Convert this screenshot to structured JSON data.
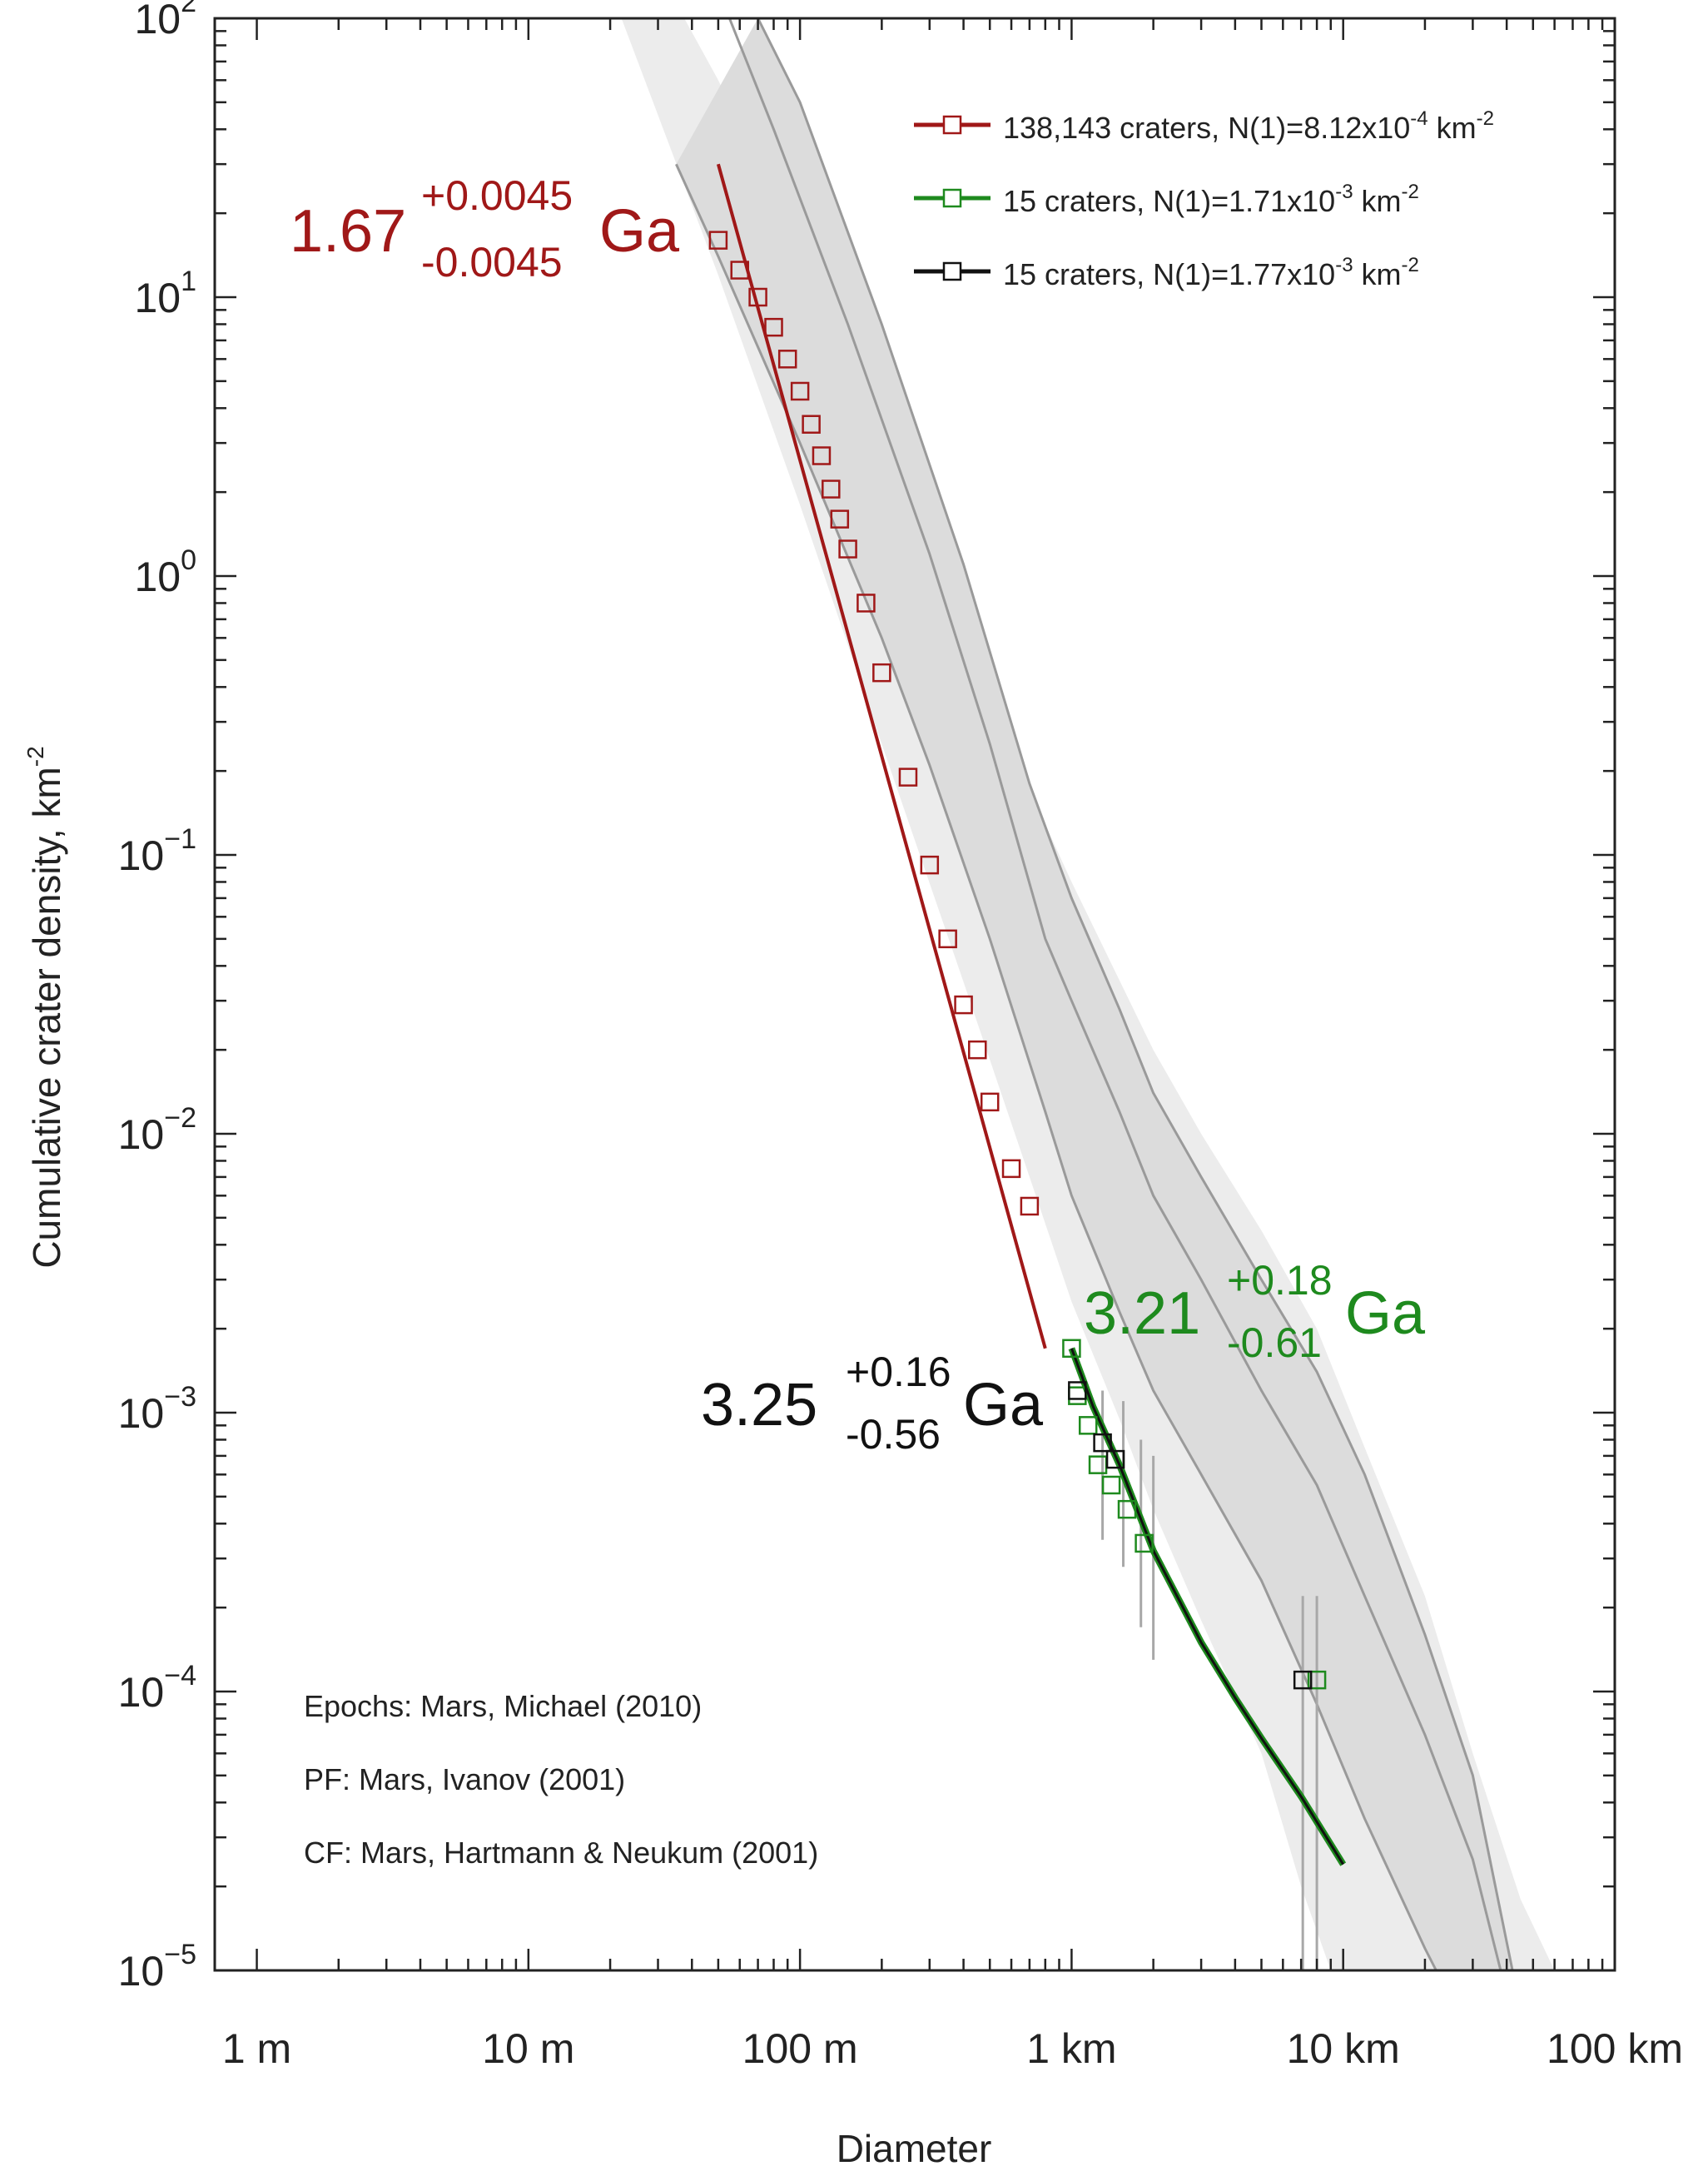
{
  "chart_data": {
    "type": "scatter",
    "xscale": "log",
    "yscale": "log",
    "xlabel": "Diameter",
    "ylabel": "Cumulative crater density, km",
    "ylabel_exp": "-2",
    "xlim_km": [
      0.0007,
      100
    ],
    "ylim": [
      1e-05,
      100
    ],
    "x_ticks": [
      {
        "value": 0.001,
        "label": "1 m"
      },
      {
        "value": 0.01,
        "label": "10 m"
      },
      {
        "value": 0.1,
        "label": "100 m"
      },
      {
        "value": 1,
        "label": "1 km"
      },
      {
        "value": 10,
        "label": "10 km"
      },
      {
        "value": 100,
        "label": "100 km"
      }
    ],
    "y_ticks": [
      {
        "value": 100,
        "base": "10",
        "exp": "2"
      },
      {
        "value": 10,
        "base": "10",
        "exp": "1"
      },
      {
        "value": 1,
        "base": "10",
        "exp": "0"
      },
      {
        "value": 0.1,
        "base": "10",
        "exp": "−1"
      },
      {
        "value": 0.01,
        "base": "10",
        "exp": "−2"
      },
      {
        "value": 0.001,
        "base": "10",
        "exp": "−3"
      },
      {
        "value": 0.0001,
        "base": "10",
        "exp": "−4"
      },
      {
        "value": 1e-05,
        "base": "10",
        "exp": "−5"
      }
    ],
    "series": [
      {
        "name": "138,143 craters, N(1)=8.12x10-4 km-2",
        "legend_count": "138,143",
        "legend_prefix": " craters, N(1)=8.12x10",
        "legend_exp1": "-4",
        "legend_unit": " km",
        "legend_exp2": "-2",
        "color": "#a01818",
        "points": [
          [
            0.05,
            16
          ],
          [
            0.06,
            12.5
          ],
          [
            0.07,
            10
          ],
          [
            0.08,
            7.8
          ],
          [
            0.09,
            6
          ],
          [
            0.1,
            4.6
          ],
          [
            0.11,
            3.5
          ],
          [
            0.12,
            2.7
          ],
          [
            0.13,
            2.05
          ],
          [
            0.14,
            1.6
          ],
          [
            0.15,
            1.25
          ],
          [
            0.175,
            0.8
          ],
          [
            0.2,
            0.45
          ],
          [
            0.25,
            0.19
          ],
          [
            0.3,
            0.092
          ],
          [
            0.35,
            0.05
          ],
          [
            0.4,
            0.029
          ],
          [
            0.45,
            0.02
          ],
          [
            0.5,
            0.013
          ],
          [
            0.6,
            0.0075
          ],
          [
            0.7,
            0.0055
          ]
        ],
        "fit": [
          [
            0.05,
            30
          ],
          [
            0.8,
            0.0017
          ]
        ],
        "age_label": {
          "value": "1.67",
          "plus": "+0.0045",
          "minus": "-0.0045",
          "unit": "Ga"
        }
      },
      {
        "name": "15 craters, N(1)=1.71x10-3 km-2",
        "legend_count": "15",
        "legend_prefix": " craters, N(1)=1.71x10",
        "legend_exp1": "-3",
        "legend_unit": " km",
        "legend_exp2": "-2",
        "color": "#1e8a1e",
        "points": [
          [
            1.0,
            0.0017
          ],
          [
            1.05,
            0.00115
          ],
          [
            1.15,
            0.0009
          ],
          [
            1.25,
            0.00065
          ],
          [
            1.4,
            0.00055
          ],
          [
            1.6,
            0.00045
          ],
          [
            1.85,
            0.00034
          ],
          [
            8.0,
            0.00011
          ]
        ],
        "age_label": {
          "value": "3.21",
          "plus": "+0.18",
          "minus": "-0.61",
          "unit": "Ga"
        }
      },
      {
        "name": "15 craters, N(1)=1.77x10-3 km-2",
        "legend_count": "15",
        "legend_prefix": " craters, N(1)=1.77x10",
        "legend_exp1": "-3",
        "legend_unit": " km",
        "legend_exp2": "-2",
        "color": "#111111",
        "points": [
          [
            1.05,
            0.0012
          ],
          [
            1.3,
            0.00078
          ],
          [
            1.45,
            0.00068
          ],
          [
            7.1,
            0.00011
          ]
        ],
        "age_label": {
          "value": "3.25",
          "plus": "+0.16",
          "minus": "-0.56",
          "unit": "Ga"
        }
      }
    ],
    "fit_curve_km": [
      [
        1.0,
        0.0017
      ],
      [
        1.2,
        0.00105
      ],
      [
        1.5,
        0.00065
      ],
      [
        2,
        0.00032
      ],
      [
        3,
        0.00015
      ],
      [
        4,
        9.5e-05
      ],
      [
        5,
        6.8e-05
      ],
      [
        7,
        4.2e-05
      ],
      [
        10,
        2.4e-05
      ]
    ],
    "isochron_curves": [
      [
        [
          0.035,
          30
        ],
        [
          0.05,
          14
        ],
        [
          0.1,
          3
        ],
        [
          0.2,
          0.6
        ],
        [
          0.3,
          0.21
        ],
        [
          0.5,
          0.05
        ],
        [
          0.8,
          0.012
        ],
        [
          1,
          0.006
        ],
        [
          1.5,
          0.0023
        ],
        [
          2,
          0.0012
        ],
        [
          3,
          0.0006
        ],
        [
          5,
          0.00025
        ],
        [
          8,
          9e-05
        ],
        [
          12,
          3.5e-05
        ],
        [
          20,
          1.2e-05
        ],
        [
          22,
          1e-05
        ]
      ],
      [
        [
          0.055,
          100
        ],
        [
          0.08,
          40
        ],
        [
          0.15,
          8
        ],
        [
          0.3,
          1.2
        ],
        [
          0.5,
          0.25
        ],
        [
          0.8,
          0.05
        ],
        [
          1,
          0.03
        ],
        [
          1.5,
          0.012
        ],
        [
          2,
          0.006
        ],
        [
          3,
          0.003
        ],
        [
          5,
          0.0012
        ],
        [
          8,
          0.00055
        ],
        [
          12,
          0.00022
        ],
        [
          20,
          7e-05
        ],
        [
          30,
          2.5e-05
        ],
        [
          38,
          1e-05
        ]
      ],
      [
        [
          0.07,
          100
        ],
        [
          0.1,
          50
        ],
        [
          0.2,
          8
        ],
        [
          0.4,
          1.1
        ],
        [
          0.7,
          0.18
        ],
        [
          1,
          0.07
        ],
        [
          1.5,
          0.028
        ],
        [
          2,
          0.014
        ],
        [
          3,
          0.007
        ],
        [
          5,
          0.003
        ],
        [
          8,
          0.0014
        ],
        [
          12,
          0.0006
        ],
        [
          20,
          0.00016
        ],
        [
          30,
          5e-05
        ],
        [
          42,
          1e-05
        ]
      ]
    ],
    "band_outer": {
      "upper": [
        [
          0.0375,
          100
        ],
        [
          0.05,
          60
        ],
        [
          0.1,
          14
        ],
        [
          0.2,
          3.2
        ],
        [
          0.5,
          0.35
        ],
        [
          1,
          0.08
        ],
        [
          2,
          0.02
        ],
        [
          3,
          0.01
        ],
        [
          5,
          0.0045
        ],
        [
          8,
          0.002
        ],
        [
          12,
          0.00075
        ],
        [
          20,
          0.00022
        ],
        [
          30,
          6e-05
        ],
        [
          45,
          1.8e-05
        ],
        [
          60,
          1e-05
        ]
      ],
      "lower": [
        [
          0.022,
          100
        ],
        [
          0.03,
          45
        ],
        [
          0.05,
          12
        ],
        [
          0.1,
          1.8
        ],
        [
          0.2,
          0.25
        ],
        [
          0.4,
          0.035
        ],
        [
          0.7,
          0.007
        ],
        [
          1,
          0.0025
        ],
        [
          1.5,
          0.00095
        ],
        [
          2,
          0.00045
        ],
        [
          3,
          0.00018
        ],
        [
          5,
          6e-05
        ],
        [
          7,
          2e-05
        ],
        [
          9,
          1e-05
        ]
      ]
    },
    "band_inner": {
      "upper": [
        [
          0.07,
          100
        ],
        [
          0.1,
          50
        ],
        [
          0.2,
          8
        ],
        [
          0.4,
          1.1
        ],
        [
          0.7,
          0.18
        ],
        [
          1,
          0.07
        ],
        [
          1.5,
          0.028
        ],
        [
          2,
          0.014
        ],
        [
          3,
          0.007
        ],
        [
          5,
          0.003
        ],
        [
          8,
          0.0014
        ],
        [
          12,
          0.0006
        ],
        [
          20,
          0.00016
        ],
        [
          30,
          5e-05
        ],
        [
          42,
          1e-05
        ]
      ],
      "lower": [
        [
          0.035,
          30
        ],
        [
          0.05,
          14
        ],
        [
          0.1,
          3
        ],
        [
          0.2,
          0.6
        ],
        [
          0.3,
          0.21
        ],
        [
          0.5,
          0.05
        ],
        [
          0.8,
          0.012
        ],
        [
          1,
          0.006
        ],
        [
          1.5,
          0.0023
        ],
        [
          2,
          0.0012
        ],
        [
          3,
          0.0006
        ],
        [
          5,
          0.00025
        ],
        [
          8,
          9e-05
        ],
        [
          12,
          3.5e-05
        ],
        [
          20,
          1.2e-05
        ],
        [
          22,
          1e-05
        ]
      ]
    },
    "error_bars": [
      {
        "x": 1.3,
        "lo": 0.00035,
        "hi": 0.0012
      },
      {
        "x": 1.55,
        "lo": 0.00028,
        "hi": 0.0011
      },
      {
        "x": 1.8,
        "lo": 0.00017,
        "hi": 0.0008
      },
      {
        "x": 2.0,
        "lo": 0.00013,
        "hi": 0.0007
      },
      {
        "x": 7.1,
        "lo": 1e-05,
        "hi": 0.00022
      },
      {
        "x": 8.0,
        "lo": 1e-05,
        "hi": 0.00022
      }
    ],
    "notes": [
      "Epochs: Mars, Michael (2010)",
      "PF: Mars, Ivanov (2001)",
      "CF: Mars, Hartmann & Neukum (2001)"
    ]
  }
}
